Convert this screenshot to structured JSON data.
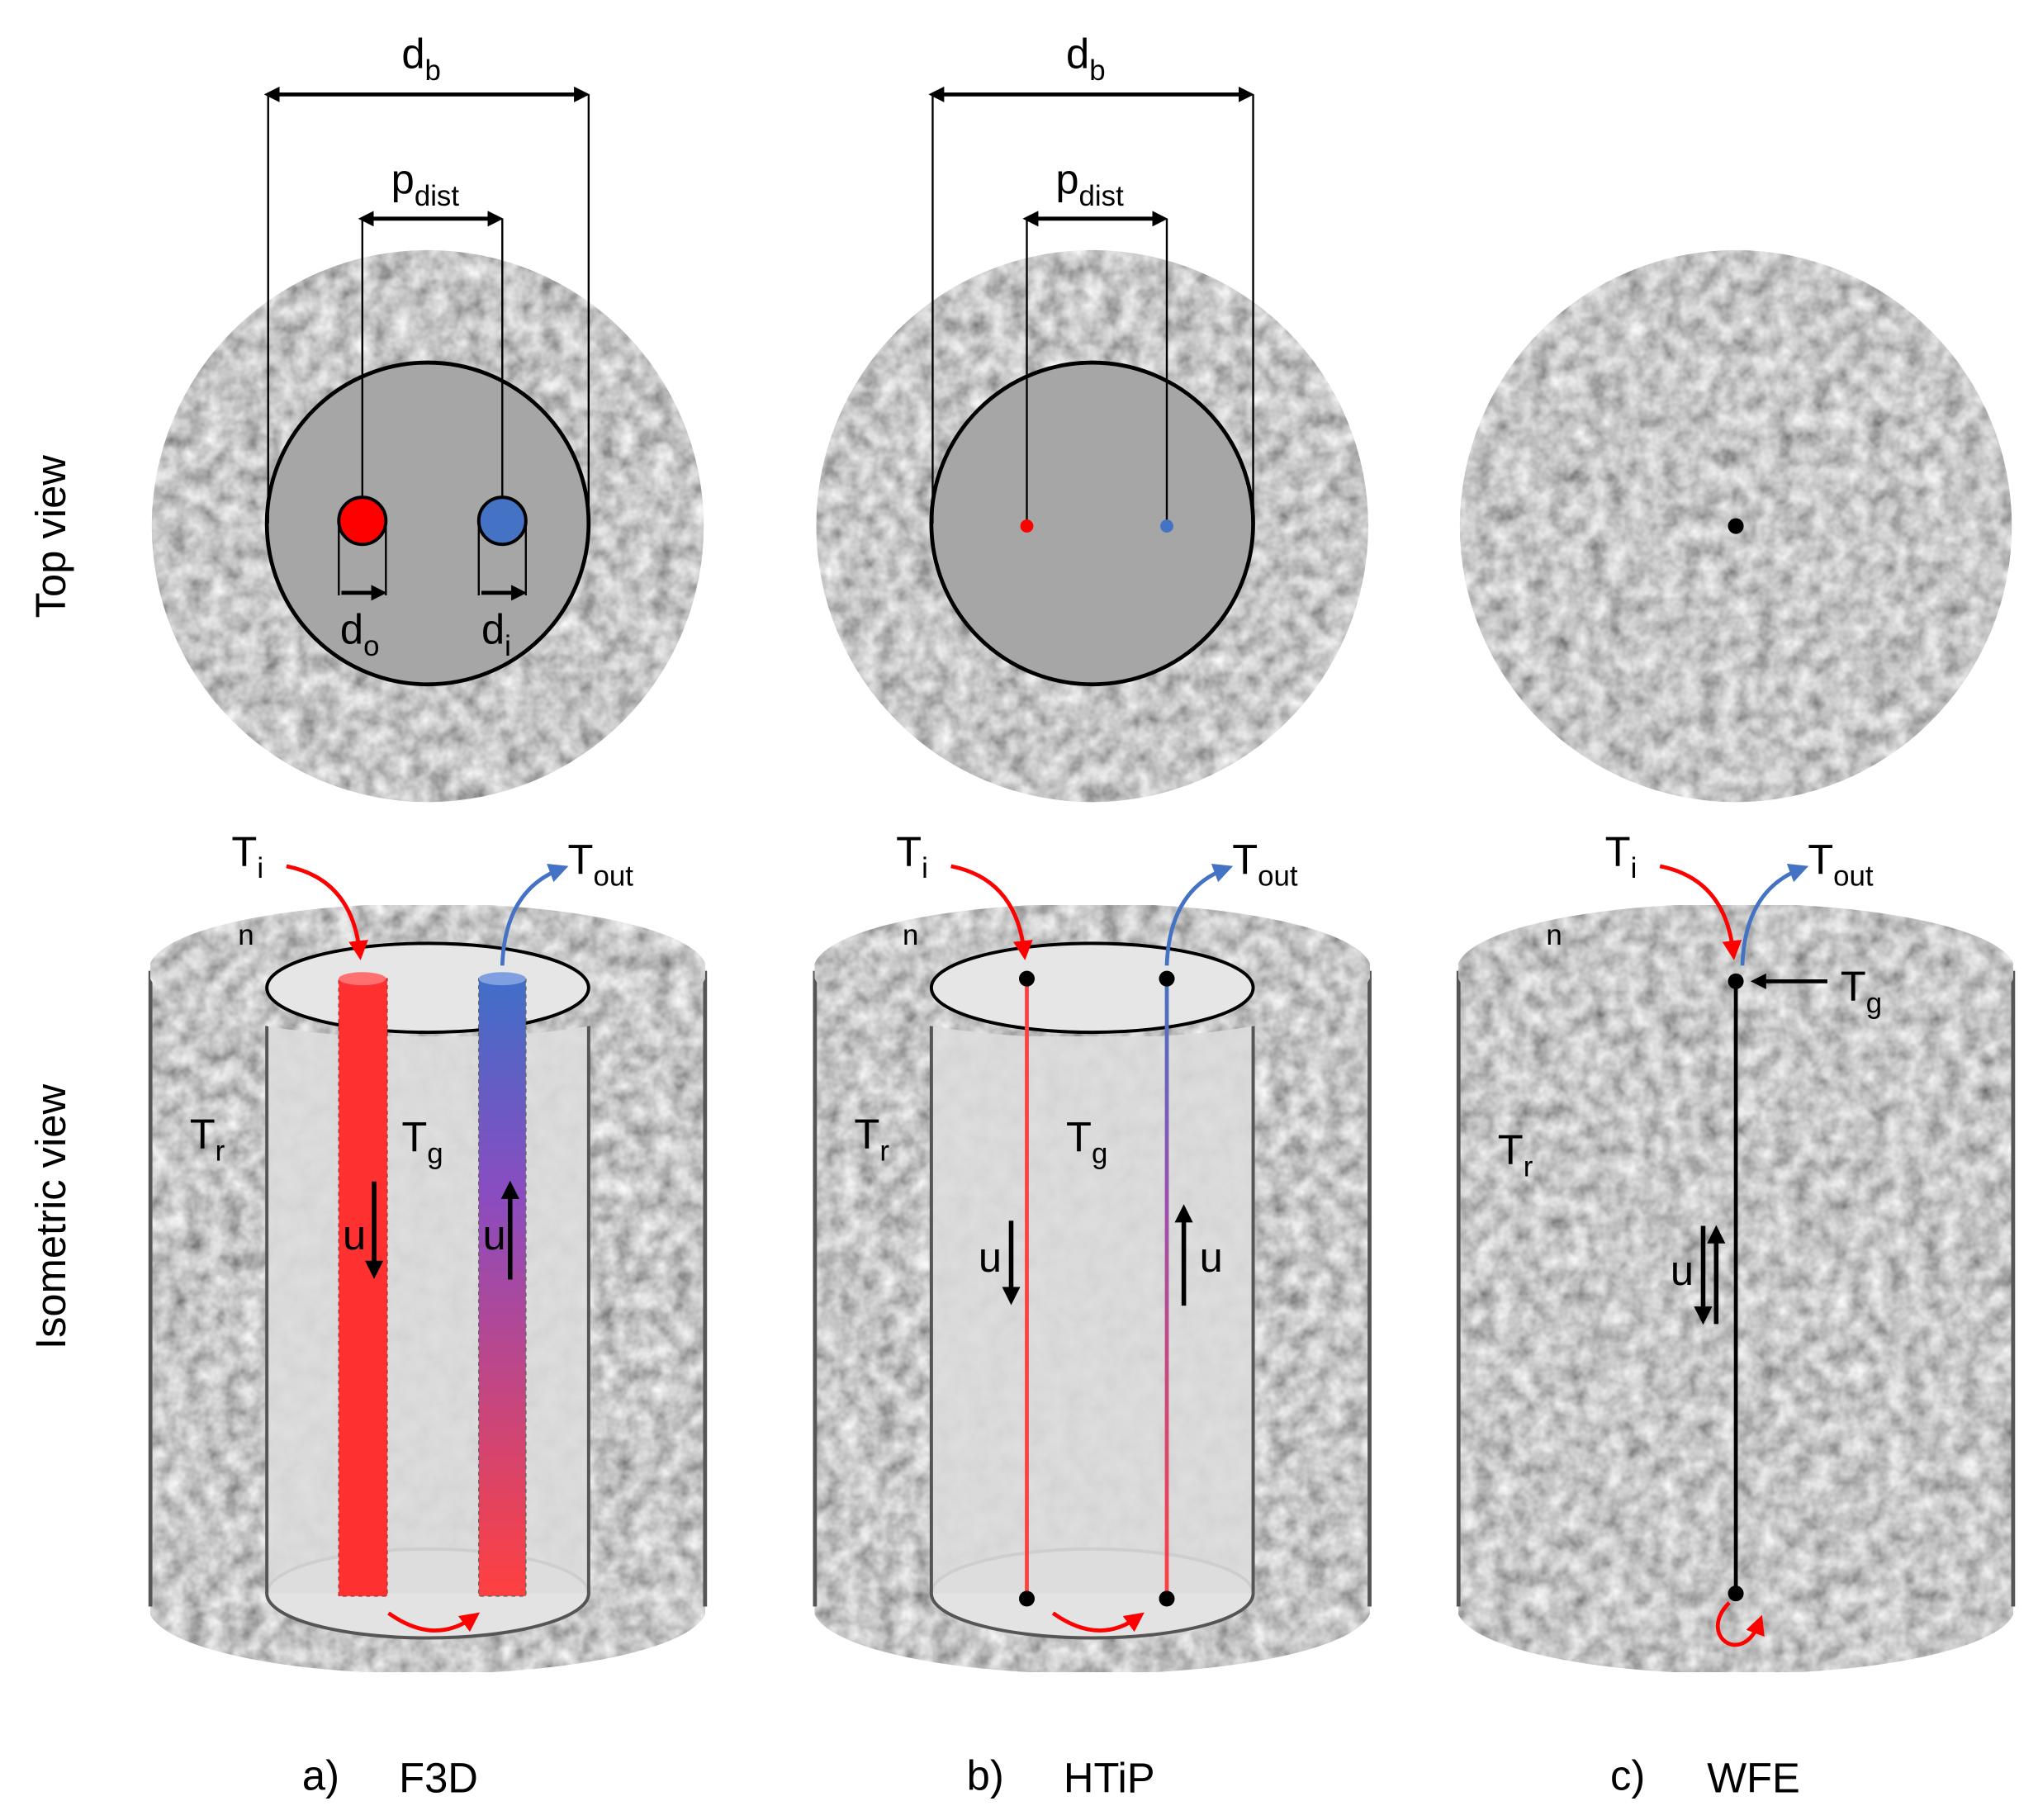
{
  "row_labels": {
    "top": "Top view",
    "isometric": "Isometric view"
  },
  "panels": [
    {
      "caption": {
        "letter": "a)",
        "name": "F3D"
      },
      "top_view": {
        "borehole_diameter": {
          "symbol": "d",
          "sub": "b"
        },
        "pipe_distance": {
          "symbol": "p",
          "sub": "dist"
        },
        "outlet_diameter": {
          "symbol": "d",
          "sub": "o"
        },
        "inlet_diameter": {
          "symbol": "d",
          "sub": "i"
        }
      },
      "isometric_view": {
        "inlet_temp": {
          "symbol": "T",
          "sub": "i"
        },
        "outlet_temp": {
          "symbol": "T",
          "sub": "out"
        },
        "normal": "n",
        "rock_temp": {
          "symbol": "T",
          "sub": "r"
        },
        "grout_temp": {
          "symbol": "T",
          "sub": "g"
        },
        "velocity_down": "u",
        "velocity_up": "u"
      }
    },
    {
      "caption": {
        "letter": "b)",
        "name": "HTiP"
      },
      "top_view": {
        "borehole_diameter": {
          "symbol": "d",
          "sub": "b"
        },
        "pipe_distance": {
          "symbol": "p",
          "sub": "dist"
        }
      },
      "isometric_view": {
        "inlet_temp": {
          "symbol": "T",
          "sub": "i"
        },
        "outlet_temp": {
          "symbol": "T",
          "sub": "out"
        },
        "normal": "n",
        "rock_temp": {
          "symbol": "T",
          "sub": "r"
        },
        "grout_temp": {
          "symbol": "T",
          "sub": "g"
        },
        "velocity_down": "u",
        "velocity_up": "u"
      }
    },
    {
      "caption": {
        "letter": "c)",
        "name": "WFE"
      },
      "isometric_view": {
        "inlet_temp": {
          "symbol": "T",
          "sub": "i"
        },
        "outlet_temp": {
          "symbol": "T",
          "sub": "out"
        },
        "normal": "n",
        "grout_temp": {
          "symbol": "T",
          "sub": "g"
        },
        "rock_temp": {
          "symbol": "T",
          "sub": "r"
        },
        "velocity": "u"
      }
    }
  ]
}
